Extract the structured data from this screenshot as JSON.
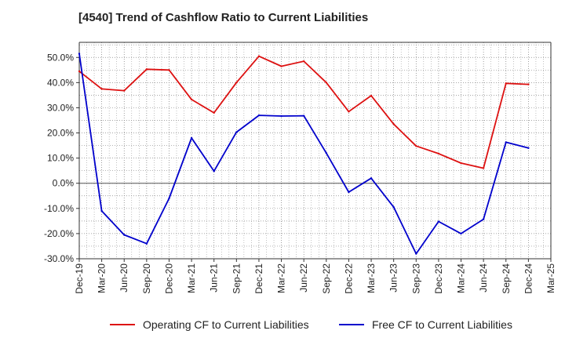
{
  "chart_data": {
    "type": "line",
    "title": "[4540]  Trend of Cashflow Ratio to Current Liabilities",
    "xlabel": "",
    "ylabel": "",
    "ylim": [
      -30,
      56
    ],
    "yticks": [
      -30,
      -20,
      -10,
      0,
      10,
      20,
      30,
      40,
      50
    ],
    "ytick_labels": [
      "-30.0%",
      "-20.0%",
      "-10.0%",
      "0.0%",
      "10.0%",
      "20.0%",
      "30.0%",
      "40.0%",
      "50.0%"
    ],
    "x_tick_labels": [
      "Dec-19",
      "Mar-20",
      "Jun-20",
      "Sep-20",
      "Dec-20",
      "Mar-21",
      "Jun-21",
      "Sep-21",
      "Dec-21",
      "Mar-22",
      "Jun-22",
      "Sep-22",
      "Dec-22",
      "Mar-23",
      "Jun-23",
      "Sep-23",
      "Dec-23",
      "Mar-24",
      "Jun-24",
      "Sep-24",
      "Dec-24",
      "Mar-25"
    ],
    "x": [
      "Dec-19",
      "Mar-20",
      "Jun-20",
      "Sep-20",
      "Dec-20",
      "Mar-21",
      "Jun-21",
      "Sep-21",
      "Dec-21",
      "Mar-22",
      "Jun-22",
      "Sep-22",
      "Dec-22",
      "Mar-23",
      "Jun-23",
      "Sep-23",
      "Dec-23",
      "Mar-24",
      "Jun-24",
      "Sep-24",
      "Dec-24"
    ],
    "grid": true,
    "legend_position": "bottom",
    "series": [
      {
        "name": "Operating CF to Current Liabilities",
        "color": "#dd1111",
        "values": [
          44.5,
          37.5,
          36.8,
          45.3,
          45.0,
          33.3,
          28.0,
          40.0,
          50.5,
          46.5,
          48.5,
          40.0,
          28.5,
          34.8,
          23.5,
          14.8,
          11.8,
          8.0,
          6.0,
          39.7,
          39.3
        ]
      },
      {
        "name": "Free CF to Current Liabilities",
        "color": "#0000cc",
        "values": [
          51.5,
          -11.0,
          -20.5,
          -24.0,
          -6.0,
          18.0,
          4.8,
          20.3,
          27.0,
          26.7,
          26.8,
          12.0,
          -3.5,
          2.0,
          -9.5,
          -28.0,
          -15.2,
          -20.0,
          -14.3,
          16.3,
          14.0
        ]
      }
    ]
  }
}
